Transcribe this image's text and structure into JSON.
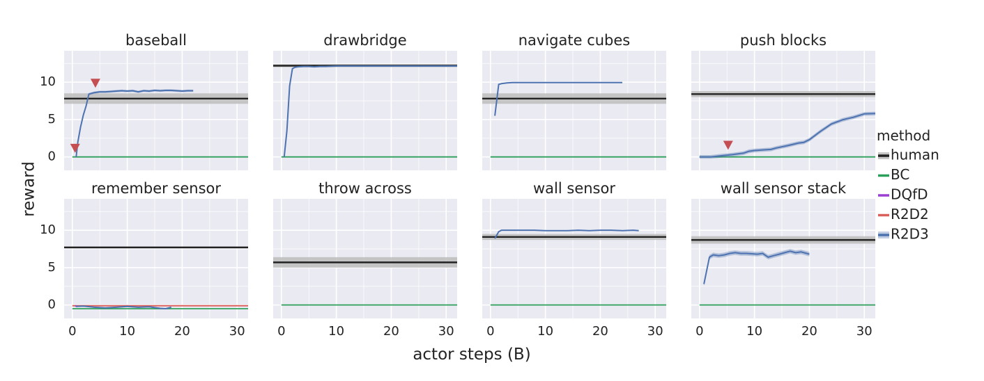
{
  "figure": {
    "ylabel": "reward",
    "xlabel": "actor steps (B)"
  },
  "legend": {
    "title": "method",
    "entries": [
      {
        "name": "human",
        "color": "#222222"
      },
      {
        "name": "BC",
        "color": "#2ca05a"
      },
      {
        "name": "DQfD",
        "color": "#9b3fd0"
      },
      {
        "name": "R2D2",
        "color": "#d9605c"
      },
      {
        "name": "R2D3",
        "color": "#4c72b0"
      }
    ]
  },
  "colors": {
    "panel_bg": "#eaeaf2",
    "grid": "#ffffff",
    "human_band": "#bdbdbd",
    "marker": "#c44e52"
  },
  "axis": {
    "xlim": [
      -1.5,
      32
    ],
    "ylim": [
      -1.8,
      14.2
    ],
    "xticks": [
      0,
      10,
      20,
      30
    ],
    "yticks": [
      0,
      5,
      10
    ]
  },
  "chart_data": [
    {
      "type": "line",
      "title": "baseball",
      "human": {
        "value": 7.8,
        "band": [
          7.1,
          8.5
        ]
      },
      "markers": [
        {
          "x": 0.5,
          "y": 1.1
        },
        {
          "x": 4.2,
          "y": 9.8
        }
      ],
      "series": [
        {
          "name": "BC",
          "x": [
            0,
            32
          ],
          "y": [
            0,
            0
          ]
        },
        {
          "name": "R2D3",
          "x": [
            0.7,
            1,
            1.5,
            2,
            2.5,
            3,
            4,
            5,
            6,
            7,
            8,
            9,
            10,
            11,
            12,
            13,
            14,
            15,
            16,
            17,
            18,
            19,
            20,
            21,
            22
          ],
          "y": [
            0,
            2,
            4,
            5.6,
            6.8,
            8.4,
            8.6,
            8.7,
            8.7,
            8.75,
            8.8,
            8.85,
            8.8,
            8.85,
            8.7,
            8.85,
            8.8,
            8.9,
            8.85,
            8.9,
            8.9,
            8.85,
            8.8,
            8.85,
            8.85
          ],
          "band": 0.15
        }
      ]
    },
    {
      "type": "line",
      "title": "drawbridge",
      "human": {
        "value": 12.2,
        "band": [
          12.0,
          12.4
        ]
      },
      "markers": [],
      "series": [
        {
          "name": "BC",
          "x": [
            0,
            32
          ],
          "y": [
            0,
            0
          ]
        },
        {
          "name": "R2D3",
          "x": [
            0.5,
            1,
            1.5,
            2,
            2.5,
            3,
            4,
            5,
            6,
            7,
            8,
            10,
            12,
            15,
            18,
            21,
            24,
            27,
            30,
            32
          ],
          "y": [
            0,
            3.5,
            9.5,
            11.8,
            12.0,
            12.05,
            12.1,
            12.1,
            12.05,
            12.1,
            12.1,
            12.15,
            12.15,
            12.15,
            12.15,
            12.15,
            12.15,
            12.15,
            12.15,
            12.15
          ],
          "band": 0.06
        }
      ]
    },
    {
      "type": "line",
      "title": "navigate cubes",
      "human": {
        "value": 7.8,
        "band": [
          7.1,
          8.5
        ]
      },
      "markers": [],
      "series": [
        {
          "name": "BC",
          "x": [
            0,
            32
          ],
          "y": [
            0,
            0
          ]
        },
        {
          "name": "R2D3",
          "x": [
            0.8,
            1.5,
            2,
            3,
            4,
            6,
            8,
            10,
            12,
            14,
            16,
            18,
            20,
            22,
            24
          ],
          "y": [
            5.5,
            9.7,
            9.8,
            9.9,
            9.95,
            9.95,
            9.95,
            9.95,
            9.95,
            9.95,
            9.95,
            9.95,
            9.95,
            9.95,
            9.95
          ],
          "band": 0.05
        }
      ]
    },
    {
      "type": "line",
      "title": "push blocks",
      "human": {
        "value": 8.4,
        "band": [
          8.0,
          8.8
        ]
      },
      "markers": [
        {
          "x": 5.2,
          "y": 1.5
        }
      ],
      "series": [
        {
          "name": "BC",
          "x": [
            0,
            32
          ],
          "y": [
            0,
            0
          ]
        },
        {
          "name": "R2D3",
          "x": [
            0,
            2,
            4,
            6,
            8,
            9,
            10,
            12,
            13,
            14,
            16,
            18,
            19,
            20,
            22,
            24,
            26,
            28,
            30,
            32
          ],
          "y": [
            0,
            0,
            0.15,
            0.3,
            0.5,
            0.75,
            0.85,
            0.95,
            1.0,
            1.2,
            1.5,
            1.85,
            1.95,
            2.3,
            3.4,
            4.4,
            4.95,
            5.3,
            5.75,
            5.8
          ],
          "band": 0.25
        }
      ]
    },
    {
      "type": "line",
      "title": "remember sensor",
      "human": {
        "value": 7.7,
        "band": [
          7.6,
          7.8
        ]
      },
      "markers": [],
      "series": [
        {
          "name": "BC",
          "x": [
            0,
            32
          ],
          "y": [
            -0.5,
            -0.5
          ]
        },
        {
          "name": "R2D2",
          "x": [
            0,
            32
          ],
          "y": [
            -0.1,
            -0.1
          ]
        },
        {
          "name": "DQfD",
          "x": [
            0.5,
            0.8
          ],
          "y": [
            -0.1,
            -0.2
          ]
        },
        {
          "name": "R2D3",
          "x": [
            0.7,
            2,
            4,
            6,
            8,
            10,
            12,
            14,
            16,
            17,
            18
          ],
          "y": [
            -0.2,
            -0.15,
            -0.3,
            -0.4,
            -0.3,
            -0.2,
            -0.3,
            -0.25,
            -0.45,
            -0.5,
            -0.3
          ],
          "band": 0.08
        }
      ]
    },
    {
      "type": "line",
      "title": "throw across",
      "human": {
        "value": 5.7,
        "band": [
          5.0,
          6.4
        ]
      },
      "markers": [],
      "series": [
        {
          "name": "BC",
          "x": [
            0,
            32
          ],
          "y": [
            0,
            0
          ]
        }
      ]
    },
    {
      "type": "line",
      "title": "wall sensor",
      "human": {
        "value": 9.1,
        "band": [
          8.7,
          9.5
        ]
      },
      "markers": [],
      "series": [
        {
          "name": "BC",
          "x": [
            0,
            32
          ],
          "y": [
            0,
            0
          ]
        },
        {
          "name": "R2D3",
          "x": [
            0.8,
            1.5,
            2,
            4,
            6,
            8,
            10,
            12,
            14,
            16,
            18,
            20,
            22,
            24,
            26,
            27
          ],
          "y": [
            8.9,
            9.8,
            10.0,
            10.0,
            10.0,
            10.0,
            9.95,
            9.95,
            9.95,
            10.0,
            9.95,
            10.0,
            10.0,
            9.95,
            10.0,
            9.95
          ],
          "band": 0.05
        }
      ]
    },
    {
      "type": "line",
      "title": "wall sensor stack",
      "human": {
        "value": 8.7,
        "band": [
          8.2,
          9.2
        ]
      },
      "markers": [],
      "series": [
        {
          "name": "BC",
          "x": [
            0,
            32
          ],
          "y": [
            0,
            0
          ]
        },
        {
          "name": "R2D3",
          "x": [
            0.8,
            1.8,
            2.5,
            3.5,
            4.5,
            5.5,
            6.5,
            7.5,
            8.5,
            9.5,
            10.5,
            11.5,
            12.5,
            13.5,
            14.5,
            15.5,
            16.5,
            17.5,
            18.5,
            19.5,
            20
          ],
          "y": [
            2.8,
            6.4,
            6.7,
            6.6,
            6.7,
            6.9,
            7.0,
            6.9,
            6.9,
            6.85,
            6.8,
            6.9,
            6.4,
            6.6,
            6.8,
            7.0,
            7.2,
            7.0,
            7.1,
            6.9,
            6.8
          ],
          "band": 0.3
        }
      ]
    }
  ]
}
